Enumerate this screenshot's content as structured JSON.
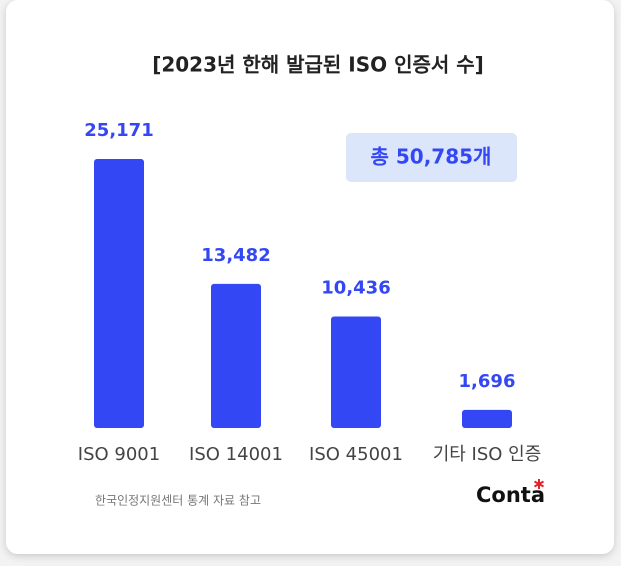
{
  "chart_data": {
    "type": "bar",
    "title": "[2023년 한해 발급된 ISO 인증서 수]",
    "categories": [
      "ISO 9001",
      "ISO 14001",
      "ISO 45001",
      "기타 ISO 인증"
    ],
    "values": [
      25171,
      13482,
      10436,
      1696
    ],
    "value_labels": [
      "25,171",
      "13,482",
      "10,436",
      "1,696"
    ],
    "color": "#3447f5",
    "annotation": "총 50,785개",
    "source": "한국인정지원센터 통계 자료 참고",
    "brand": "Conta"
  }
}
